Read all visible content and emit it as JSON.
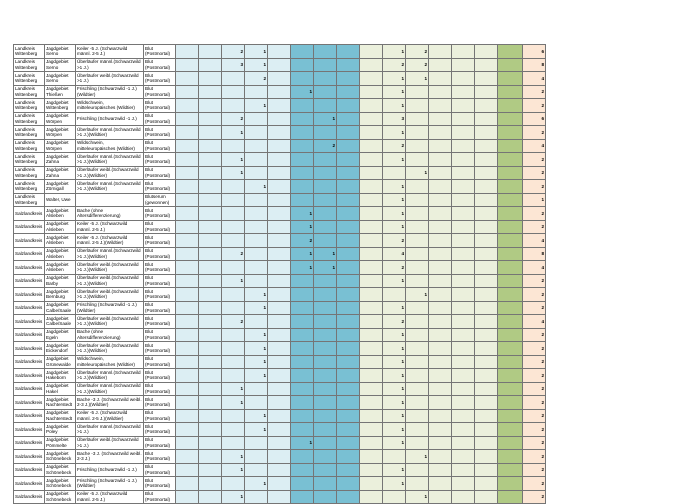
{
  "page": {
    "background": "#ffffff"
  },
  "table": {
    "value_column_count": 14,
    "column_groups": [
      {
        "name": "group-pale-blue",
        "columns": "1-5",
        "color": "#dceef3"
      },
      {
        "name": "group-teal",
        "columns": "6-8",
        "color": "#79c0d3"
      },
      {
        "name": "group-pale-green",
        "columns": "9-14",
        "color": "#ebf0dc"
      },
      {
        "name": "group-dark-green-highlight",
        "columns": "15",
        "color": "#b0ca84"
      },
      {
        "name": "group-row-total",
        "columns": "16",
        "color": "#fce6d4"
      }
    ],
    "rows": [
      {
        "region": "Landkreis Wittenberg",
        "area": "Jagdgebiet Serno",
        "species": "Keiler -5 J. (Schwarzwild männl. 2-5 J.)",
        "material": "Blut (Postmortal)",
        "values": {
          "3": 2,
          "4": 1,
          "10": 1,
          "11": 2
        },
        "total": 6
      },
      {
        "region": "Landkreis Wittenberg",
        "area": "Jagdgebiet Serno",
        "species": "Überläufer männl.(Schwarzwild >1 J.)",
        "material": "Blut (Postmortal)",
        "values": {
          "3": 3,
          "4": 1,
          "10": 2,
          "11": 2
        },
        "total": 8
      },
      {
        "region": "Landkreis Wittenberg",
        "area": "Jagdgebiet Serno",
        "species": "Überläufer weibl.(Schwarzwild >1 J.)",
        "material": "Blut (Postmortal)",
        "values": {
          "4": 2,
          "10": 1,
          "11": 1
        },
        "total": 4
      },
      {
        "region": "Landkreis Wittenberg",
        "area": "Jagdgebiet Thießen",
        "species": "Frischling (Schwarzwild -1 J.)(Wildtier)",
        "material": "Blut (Postmortal)",
        "values": {
          "6": 1,
          "10": 1
        },
        "total": 2
      },
      {
        "region": "Landkreis Wittenberg",
        "area": "Jagdgebiet Wittenberg",
        "species": "Wildschwein, mitteleuropäisches (Wildtier)",
        "material": "Blut (Postmortal)",
        "values": {
          "4": 1,
          "10": 1
        },
        "total": 2
      },
      {
        "region": "Landkreis Wittenberg",
        "area": "Jagdgebiet Wörpen",
        "species": "Frischling (Schwarzwild -1 J.)",
        "material": "Blut (Postmortal)",
        "values": {
          "3": 2,
          "7": 1,
          "10": 3
        },
        "total": 6
      },
      {
        "region": "Landkreis Wittenberg",
        "area": "Jagdgebiet Wörpen",
        "species": "Überläufer männl.(Schwarzwild >1 J.)(Wildtier)",
        "material": "Blut (Postmortal)",
        "values": {
          "3": 1,
          "10": 1
        },
        "total": 2
      },
      {
        "region": "Landkreis Wittenberg",
        "area": "Jagdgebiet Wörpen",
        "species": "Wildschwein, mitteleuropäisches (Wildtier)",
        "material": "Blut (Postmortal)",
        "values": {
          "7": 2,
          "10": 2
        },
        "total": 4
      },
      {
        "region": "Landkreis Wittenberg",
        "area": "Jagdgebiet Zahna",
        "species": "Überläufer männl.(Schwarzwild >1 J.)(Wildtier)",
        "material": "Blut (Postmortal)",
        "values": {
          "3": 1,
          "10": 1
        },
        "total": 2
      },
      {
        "region": "Landkreis Wittenberg",
        "area": "Jagdgebiet Zahna",
        "species": "Überläufer weibl.(Schwarzwild >1 J.)(Wildtier)",
        "material": "Blut (Postmortal)",
        "values": {
          "3": 1,
          "11": 1
        },
        "total": 2
      },
      {
        "region": "Landkreis Wittenberg",
        "area": "Jagdgebiet Zörnigall",
        "species": "Überläufer männl.(Schwarzwild >1 J.)(Wildtier)",
        "material": "Blut (Postmortal)",
        "values": {
          "4": 1,
          "10": 1
        },
        "total": 2
      },
      {
        "region": "Landkreis Wittenberg",
        "area": "Walter, Uwe",
        "species": "",
        "material": "Blutserum (gewonnen)",
        "values": {
          "10": 1
        },
        "total": 1
      },
      {
        "region": "Salzlandkreis",
        "area": "Jagdgebiet Alsleben",
        "species": "Bache (ohne Altersdifferenzierung)",
        "material": "Blut (Postmortal)",
        "values": {
          "6": 1,
          "10": 1
        },
        "total": 2
      },
      {
        "region": "Salzlandkreis",
        "area": "Jagdgebiet Alsleben",
        "species": "Keiler -5 J. (Schwarzwild männl. 2-5 J.)",
        "material": "Blut (Postmortal)",
        "values": {
          "6": 1,
          "10": 1
        },
        "total": 2
      },
      {
        "region": "Salzlandkreis",
        "area": "Jagdgebiet Alsleben",
        "species": "Keiler -5 J. (Schwarzwild männl. 2-5 J.)(Wildtier)",
        "material": "Blut (Postmortal)",
        "values": {
          "6": 2,
          "10": 2
        },
        "total": 4
      },
      {
        "region": "Salzlandkreis",
        "area": "Jagdgebiet Alsleben",
        "species": "Überläufer männl.(Schwarzwild >1 J.)(Wildtier)",
        "material": "Blut (Postmortal)",
        "values": {
          "3": 2,
          "6": 1,
          "7": 1,
          "10": 4
        },
        "total": 8
      },
      {
        "region": "Salzlandkreis",
        "area": "Jagdgebiet Alsleben",
        "species": "Überläufer weibl.(Schwarzwild >1 J.)(Wildtier)",
        "material": "Blut (Postmortal)",
        "values": {
          "6": 1,
          "7": 1,
          "10": 2
        },
        "total": 4
      },
      {
        "region": "Salzlandkreis",
        "area": "Jagdgebiet Barby",
        "species": "Überläufer weibl.(Schwarzwild >1 J.)(Wildtier)",
        "material": "Blut (Postmortal)",
        "values": {
          "3": 1,
          "10": 1
        },
        "total": 2
      },
      {
        "region": "Salzlandkreis",
        "area": "Jagdgebiet Bernburg",
        "species": "Überläufer weibl.(Schwarzwild >1 J.)(Wildtier)",
        "material": "Blut (Postmortal)",
        "values": {
          "4": 1,
          "11": 1
        },
        "total": 2
      },
      {
        "region": "Salzlandkreis",
        "area": "Jagdgebiet Calbe/Saale",
        "species": "Frischling (Schwarzwild -1 J.)(Wildtier)",
        "material": "Blut (Postmortal)",
        "values": {
          "4": 1,
          "10": 1
        },
        "total": 2
      },
      {
        "region": "Salzlandkreis",
        "area": "Jagdgebiet Calbe/Saale",
        "species": "Überläufer weibl.(Schwarzwild >1 J.)(Wildtier)",
        "material": "Blut (Postmortal)",
        "values": {
          "3": 2,
          "10": 2
        },
        "total": 4
      },
      {
        "region": "Salzlandkreis",
        "area": "Jagdgebiet Egeln",
        "species": "Bache (ohne Altersdifferenzierung)",
        "material": "Blut (Postmortal)",
        "values": {
          "4": 1,
          "10": 1
        },
        "total": 2
      },
      {
        "region": "Salzlandkreis",
        "area": "Jagdgebiet Eickendorf",
        "species": "Überläufer weibl.(Schwarzwild >1 J.)(Wildtier)",
        "material": "Blut (Postmortal)",
        "values": {
          "4": 1,
          "10": 1
        },
        "total": 2
      },
      {
        "region": "Salzlandkreis",
        "area": "Jagdgebiet Grünewalde",
        "species": "Wildschwein, mitteleuropäisches (Wildtier)",
        "material": "Blut (Postmortal)",
        "values": {
          "4": 1,
          "10": 1
        },
        "total": 2
      },
      {
        "region": "Salzlandkreis",
        "area": "Jagdgebiet Hakeborn",
        "species": "Überläufer männl.(Schwarzwild >1 J.)(Wildtier)",
        "material": "Blut (Postmortal)",
        "values": {
          "4": 1,
          "10": 1
        },
        "total": 2
      },
      {
        "region": "Salzlandkreis",
        "area": "Jagdgebiet Hakel",
        "species": "Überläufer männl.(Schwarzwild >1 J.)(Wildtier)",
        "material": "Blut (Postmortal)",
        "values": {
          "3": 1,
          "10": 1
        },
        "total": 2
      },
      {
        "region": "Salzlandkreis",
        "area": "Jagdgebiet Nachterstedt",
        "species": "Bache -3 J. (Schwarzwild weibl. 2-3 J.)(Wildtier)",
        "material": "Blut (Postmortal)",
        "values": {
          "3": 1,
          "10": 1
        },
        "total": 2
      },
      {
        "region": "Salzlandkreis",
        "area": "Jagdgebiet Nachterstedt",
        "species": "Keiler -5 J. (Schwarzwild männl. 2-5 J.)(Wildtier)",
        "material": "Blut (Postmortal)",
        "values": {
          "4": 1,
          "10": 1
        },
        "total": 2
      },
      {
        "region": "Salzlandkreis",
        "area": "Jagdgebiet Poley",
        "species": "Überläufer männl.(Schwarzwild >1 J.)",
        "material": "Blut (Postmortal)",
        "values": {
          "4": 1,
          "10": 1
        },
        "total": 2
      },
      {
        "region": "Salzlandkreis",
        "area": "Jagdgebiet Pömmelte",
        "species": "Überläufer weibl.(Schwarzwild >1 J.)",
        "material": "Blut (Postmortal)",
        "values": {
          "6": 1,
          "10": 1
        },
        "total": 2
      },
      {
        "region": "Salzlandkreis",
        "area": "Jagdgebiet Schönebeck",
        "species": "Bache -3 J. (Schwarzwild weibl. 2-3 J.)",
        "material": "Blut (Postmortal)",
        "values": {
          "3": 1,
          "11": 1
        },
        "total": 2
      },
      {
        "region": "Salzlandkreis",
        "area": "Jagdgebiet Schönebeck",
        "species": "Frischling (Schwarzwild -1 J.)",
        "material": "Blut (Postmortal)",
        "values": {
          "3": 1,
          "10": 1
        },
        "total": 2
      },
      {
        "region": "Salzlandkreis",
        "area": "Jagdgebiet Schönebeck",
        "species": "Frischling (Schwarzwild -1 J.)(Wildtier)",
        "material": "Blut (Postmortal)",
        "values": {
          "4": 1,
          "10": 1
        },
        "total": 2
      },
      {
        "region": "Salzlandkreis",
        "area": "Jagdgebiet Schönebeck",
        "species": "Keiler -5 J. (Schwarzwild männl. 2-5 J.)",
        "material": "Blut (Postmortal)",
        "values": {
          "3": 1,
          "11": 1
        },
        "total": 2
      }
    ]
  }
}
